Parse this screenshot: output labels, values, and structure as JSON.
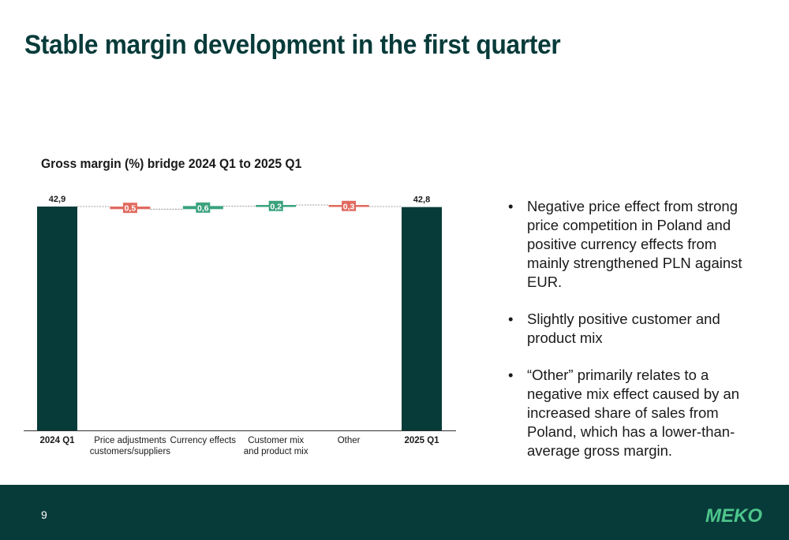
{
  "page": {
    "title": "Stable margin development in the first quarter",
    "page_number": "9",
    "logo_text": "MEKO"
  },
  "bullets": [
    "Negative price effect from strong price competition in Poland and positive currency effects from mainly strengthened PLN against EUR.",
    "Slightly positive customer and product mix",
    "“Other” primarily relates to a negative mix effect caused by an increased share of sales from Poland, which has a lower-than-average gross margin."
  ],
  "chart_data": {
    "type": "bar",
    "subtype": "waterfall",
    "title": "Gross margin (%) bridge 2024 Q1 to 2025 Q1",
    "categories": [
      [
        "2024 Q1"
      ],
      [
        "Price adjustments",
        "customers/suppliers"
      ],
      [
        "Currency effects"
      ],
      [
        "Customer mix",
        "and product mix"
      ],
      [
        "Other"
      ],
      [
        "2025 Q1"
      ]
    ],
    "category_bold": [
      true,
      false,
      false,
      false,
      false,
      true
    ],
    "values": [
      42.9,
      -0.5,
      0.6,
      0.2,
      -0.3,
      42.8
    ],
    "kinds": [
      "total",
      "delta",
      "delta",
      "delta",
      "delta",
      "total"
    ],
    "labels": [
      "42,9",
      "0,5",
      "0,6",
      "0,2",
      "0,3",
      "42,8"
    ],
    "ylim": [
      0,
      43.3
    ],
    "grid": false,
    "legend": "none",
    "colors": {
      "total": "#073b3a",
      "increase": "#3aa27d",
      "decrease": "#e06a5f",
      "connector": "#7f7f7f",
      "axis": "#333333"
    }
  }
}
